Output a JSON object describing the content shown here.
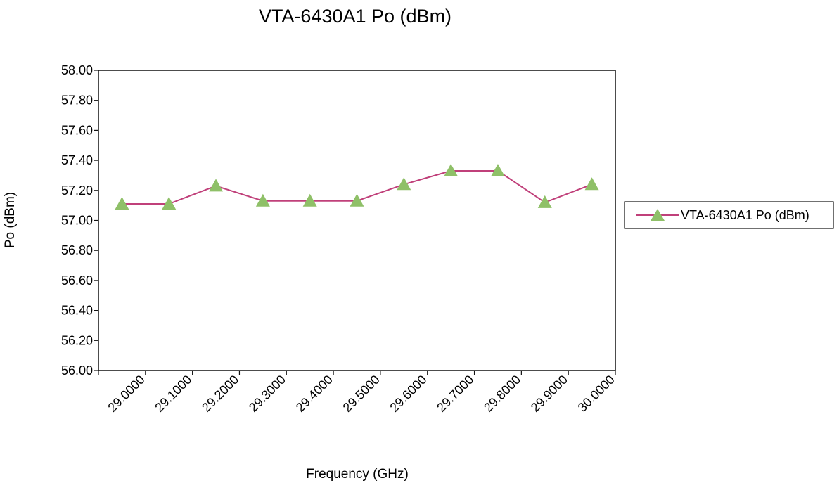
{
  "chart_data": {
    "type": "line",
    "title": "VTA-6430A1 Po (dBm)",
    "xlabel": "Frequency (GHz)",
    "ylabel": "Po (dBm)",
    "categories": [
      "29.0000",
      "29.1000",
      "29.2000",
      "29.3000",
      "29.4000",
      "29.5000",
      "29.6000",
      "29.7000",
      "29.8000",
      "29.9000",
      "30.0000"
    ],
    "series": [
      {
        "name": "VTA-6430A1 Po (dBm)",
        "values": [
          57.11,
          57.11,
          57.23,
          57.13,
          57.13,
          57.13,
          57.24,
          57.33,
          57.33,
          57.12,
          57.24
        ],
        "line_color": "#c0407a",
        "marker_color": "#8fc068",
        "marker": "triangle"
      }
    ],
    "yticks": [
      "56.00",
      "56.20",
      "56.40",
      "56.60",
      "56.80",
      "57.00",
      "57.20",
      "57.40",
      "57.60",
      "57.80",
      "58.00"
    ],
    "ylim": [
      56.0,
      58.0
    ],
    "grid": false,
    "legend": "right"
  }
}
